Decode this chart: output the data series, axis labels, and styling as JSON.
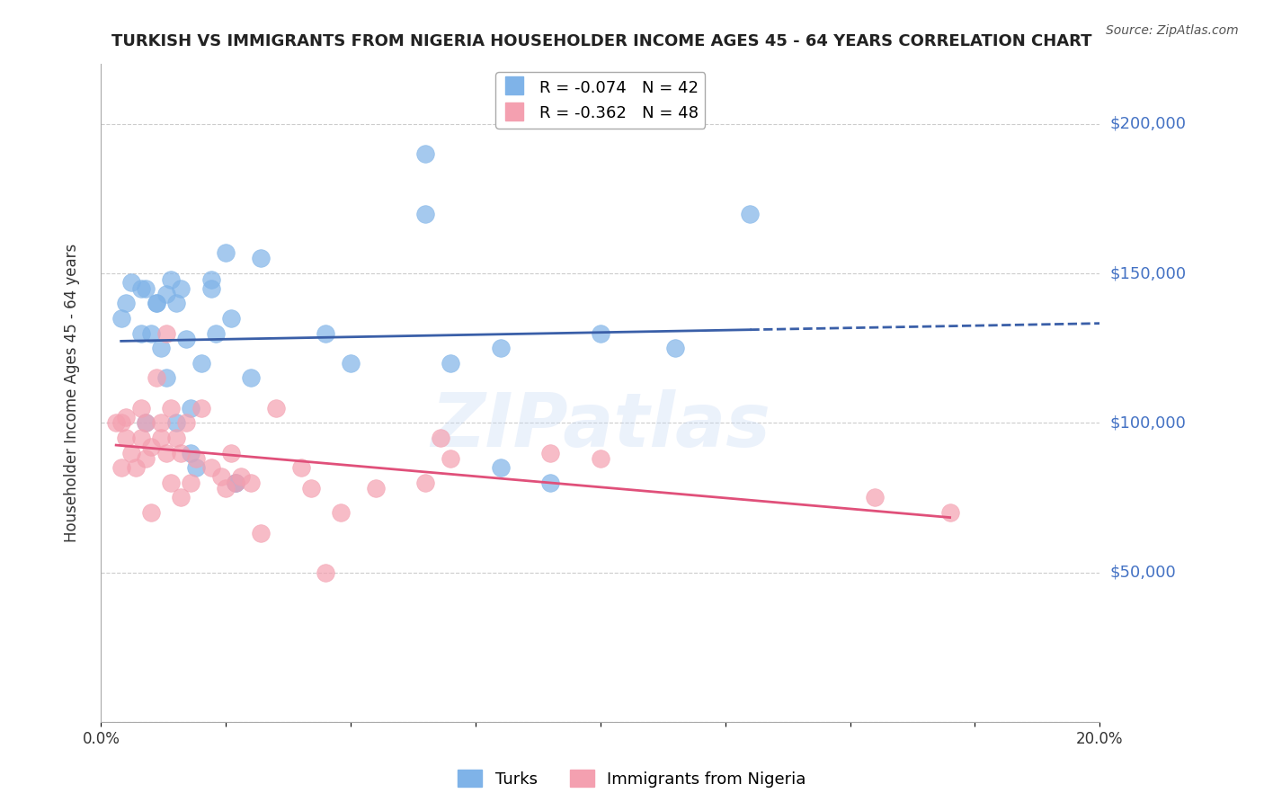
{
  "title": "TURKISH VS IMMIGRANTS FROM NIGERIA HOUSEHOLDER INCOME AGES 45 - 64 YEARS CORRELATION CHART",
  "source": "Source: ZipAtlas.com",
  "ylabel_label": "Householder Income Ages 45 - 64 years",
  "xmin": 0.0,
  "xmax": 0.2,
  "ymin": 0,
  "ymax": 220000,
  "yticks": [
    0,
    50000,
    100000,
    150000,
    200000
  ],
  "ytick_labels": [
    "",
    "$50,000",
    "$100,000",
    "$150,000",
    "$200,000"
  ],
  "xticks": [
    0.0,
    0.025,
    0.05,
    0.075,
    0.1,
    0.125,
    0.15,
    0.175,
    0.2
  ],
  "background_color": "#ffffff",
  "grid_color": "#cccccc",
  "watermark": "ZIPatlas",
  "turks_color": "#7fb3e8",
  "nigeria_color": "#f4a0b0",
  "turks_line_color": "#3a5fa8",
  "nigeria_line_color": "#e0507a",
  "right_label_color": "#4472c4",
  "turks_r": -0.074,
  "turks_n": 42,
  "nigeria_r": -0.362,
  "nigeria_n": 48,
  "turks_scatter_x": [
    0.004,
    0.005,
    0.006,
    0.008,
    0.008,
    0.009,
    0.009,
    0.01,
    0.011,
    0.011,
    0.012,
    0.013,
    0.013,
    0.014,
    0.015,
    0.015,
    0.016,
    0.017,
    0.018,
    0.018,
    0.019,
    0.02,
    0.022,
    0.022,
    0.023,
    0.025,
    0.026,
    0.027,
    0.027,
    0.03,
    0.032,
    0.045,
    0.05,
    0.065,
    0.065,
    0.07,
    0.08,
    0.08,
    0.09,
    0.1,
    0.115,
    0.13
  ],
  "turks_scatter_y": [
    135000,
    140000,
    147000,
    130000,
    145000,
    145000,
    100000,
    130000,
    140000,
    140000,
    125000,
    115000,
    143000,
    148000,
    140000,
    100000,
    145000,
    128000,
    90000,
    105000,
    85000,
    120000,
    148000,
    145000,
    130000,
    157000,
    135000,
    80000,
    80000,
    115000,
    155000,
    130000,
    120000,
    170000,
    190000,
    120000,
    125000,
    85000,
    80000,
    130000,
    125000,
    170000
  ],
  "nigeria_scatter_x": [
    0.003,
    0.004,
    0.004,
    0.005,
    0.005,
    0.006,
    0.007,
    0.008,
    0.008,
    0.009,
    0.009,
    0.01,
    0.01,
    0.011,
    0.012,
    0.012,
    0.013,
    0.013,
    0.014,
    0.014,
    0.015,
    0.016,
    0.016,
    0.017,
    0.018,
    0.019,
    0.02,
    0.022,
    0.024,
    0.025,
    0.026,
    0.027,
    0.028,
    0.03,
    0.032,
    0.035,
    0.04,
    0.042,
    0.045,
    0.048,
    0.055,
    0.065,
    0.068,
    0.07,
    0.09,
    0.1,
    0.155,
    0.17
  ],
  "nigeria_scatter_y": [
    100000,
    100000,
    85000,
    95000,
    102000,
    90000,
    85000,
    95000,
    105000,
    100000,
    88000,
    92000,
    70000,
    115000,
    100000,
    95000,
    130000,
    90000,
    105000,
    80000,
    95000,
    90000,
    75000,
    100000,
    80000,
    88000,
    105000,
    85000,
    82000,
    78000,
    90000,
    80000,
    82000,
    80000,
    63000,
    105000,
    85000,
    78000,
    50000,
    70000,
    78000,
    80000,
    95000,
    88000,
    90000,
    88000,
    75000,
    70000
  ]
}
